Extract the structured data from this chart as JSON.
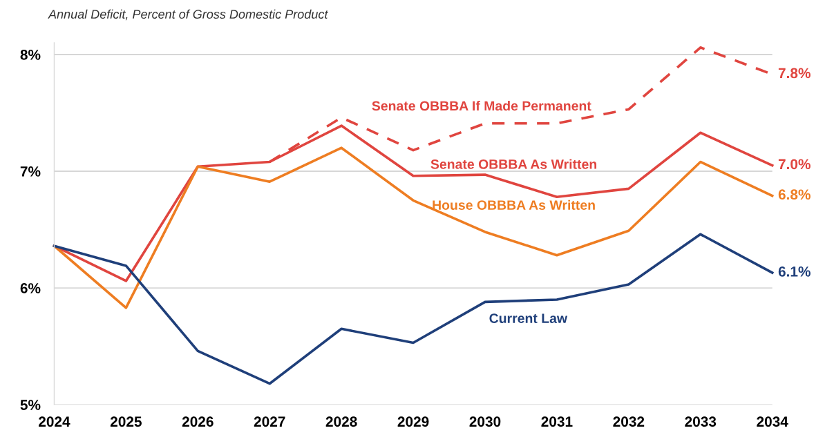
{
  "chart_data": {
    "type": "line",
    "title": "Annual Deficit, Percent of Gross Domestic Product",
    "x": [
      2024,
      2025,
      2026,
      2027,
      2028,
      2029,
      2030,
      2031,
      2032,
      2033,
      2034
    ],
    "xlim": [
      2024,
      2034
    ],
    "xticks": [
      2024,
      2025,
      2026,
      2027,
      2028,
      2029,
      2030,
      2031,
      2032,
      2033,
      2034
    ],
    "ylim": [
      5,
      8.1
    ],
    "yticks": [
      {
        "value": 5,
        "label": "5%"
      },
      {
        "value": 6,
        "label": "6%"
      },
      {
        "value": 7,
        "label": "7%"
      },
      {
        "value": 8,
        "label": "8%"
      }
    ],
    "grid": "y",
    "legend": false,
    "marker": "none",
    "series": [
      {
        "name": "Senate OBBBA If Made Permanent",
        "color": "#e0453f",
        "line_style": "dashed",
        "values": [
          null,
          null,
          null,
          7.08,
          7.46,
          7.18,
          7.41,
          7.41,
          7.53,
          8.06,
          7.83
        ],
        "value_labels": [
          null,
          null,
          null,
          null,
          null,
          null,
          null,
          null,
          null,
          null,
          "7.8%"
        ]
      },
      {
        "name": "Senate OBBBA As Written",
        "color": "#e0453f",
        "line_style": "solid",
        "values": [
          6.36,
          6.06,
          7.04,
          7.08,
          7.39,
          6.96,
          6.97,
          6.78,
          6.85,
          7.33,
          7.05
        ],
        "value_labels": [
          null,
          null,
          null,
          null,
          null,
          null,
          null,
          null,
          null,
          null,
          "7.0%"
        ]
      },
      {
        "name": "House OBBBA As Written",
        "color": "#ee7d22",
        "line_style": "solid",
        "values": [
          6.36,
          5.83,
          7.04,
          6.91,
          7.2,
          6.75,
          6.48,
          6.28,
          6.49,
          7.08,
          6.79
        ],
        "value_labels": [
          null,
          null,
          null,
          null,
          null,
          null,
          null,
          null,
          null,
          null,
          "6.8%"
        ]
      },
      {
        "name": "Current Law",
        "color": "#1f3f7a",
        "line_style": "solid",
        "values": [
          6.36,
          6.19,
          5.46,
          5.18,
          5.65,
          5.53,
          5.88,
          5.9,
          6.03,
          6.46,
          6.13
        ],
        "value_labels": [
          null,
          null,
          null,
          null,
          null,
          null,
          null,
          null,
          null,
          null,
          "6.1%"
        ]
      }
    ]
  }
}
